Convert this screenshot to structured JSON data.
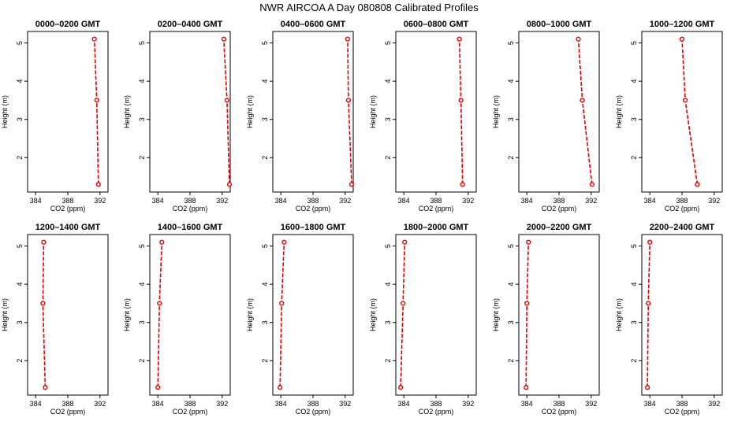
{
  "figure": {
    "title": "NWR AIRCOA A  Day 080808  Calibrated Profiles",
    "colors": {
      "series": "#dd0000",
      "axis": "#000000"
    }
  },
  "chart_data": [
    {
      "type": "line",
      "title": "0000–0200 GMT",
      "xlabel": "CO2 (ppm)",
      "ylabel": "Height (m)",
      "xlim": [
        383,
        393
      ],
      "ylim": [
        1.1,
        5.3
      ],
      "xticks": [
        384,
        388,
        392
      ],
      "yticks": [
        2,
        3,
        4,
        5
      ],
      "grid": false,
      "series": [
        {
          "x": [
            391.8,
            391.6,
            391.3
          ],
          "y": [
            1.3,
            3.5,
            5.1
          ]
        }
      ]
    },
    {
      "type": "line",
      "title": "0200–0400 GMT",
      "xlabel": "CO2 (ppm)",
      "ylabel": "Height (m)",
      "xlim": [
        383,
        393
      ],
      "ylim": [
        1.1,
        5.3
      ],
      "xticks": [
        384,
        388,
        392
      ],
      "yticks": [
        2,
        3,
        4,
        5
      ],
      "grid": false,
      "series": [
        {
          "x": [
            392.9,
            392.6,
            392.2
          ],
          "y": [
            1.3,
            3.5,
            5.1
          ]
        }
      ]
    },
    {
      "type": "line",
      "title": "0400–0600 GMT",
      "xlabel": "CO2 (ppm)",
      "ylabel": "Height (m)",
      "xlim": [
        383,
        393
      ],
      "ylim": [
        1.1,
        5.3
      ],
      "xticks": [
        384,
        388,
        392
      ],
      "yticks": [
        2,
        3,
        4,
        5
      ],
      "grid": false,
      "series": [
        {
          "x": [
            392.8,
            392.4,
            392.3
          ],
          "y": [
            1.3,
            3.5,
            5.1
          ]
        }
      ]
    },
    {
      "type": "line",
      "title": "0600–0800 GMT",
      "xlabel": "CO2 (ppm)",
      "ylabel": "Height (m)",
      "xlim": [
        383,
        393
      ],
      "ylim": [
        1.1,
        5.3
      ],
      "xticks": [
        384,
        388,
        392
      ],
      "yticks": [
        2,
        3,
        4,
        5
      ],
      "grid": false,
      "series": [
        {
          "x": [
            391.3,
            391.1,
            390.9
          ],
          "y": [
            1.3,
            3.5,
            5.1
          ]
        }
      ]
    },
    {
      "type": "line",
      "title": "0800–1000 GMT",
      "xlabel": "CO2 (ppm)",
      "ylabel": "Height (m)",
      "xlim": [
        383,
        393
      ],
      "ylim": [
        1.1,
        5.3
      ],
      "xticks": [
        384,
        388,
        392
      ],
      "yticks": [
        2,
        3,
        4,
        5
      ],
      "grid": false,
      "series": [
        {
          "x": [
            392.1,
            390.9,
            390.4
          ],
          "y": [
            1.3,
            3.5,
            5.1
          ]
        }
      ]
    },
    {
      "type": "line",
      "title": "1000–1200 GMT",
      "xlabel": "CO2 (ppm)",
      "ylabel": "Height (m)",
      "xlim": [
        383,
        393
      ],
      "ylim": [
        1.1,
        5.3
      ],
      "xticks": [
        384,
        388,
        392
      ],
      "yticks": [
        2,
        3,
        4,
        5
      ],
      "grid": false,
      "series": [
        {
          "x": [
            389.9,
            388.4,
            388.0
          ],
          "y": [
            1.3,
            3.5,
            5.1
          ]
        }
      ]
    },
    {
      "type": "line",
      "title": "1200–1400 GMT",
      "xlabel": "CO2 (ppm)",
      "ylabel": "Height (m)",
      "xlim": [
        383,
        393
      ],
      "ylim": [
        1.1,
        5.3
      ],
      "xticks": [
        384,
        388,
        392
      ],
      "yticks": [
        2,
        3,
        4,
        5
      ],
      "grid": false,
      "series": [
        {
          "x": [
            385.2,
            384.9,
            385.0
          ],
          "y": [
            1.3,
            3.5,
            5.1
          ]
        }
      ]
    },
    {
      "type": "line",
      "title": "1400–1600 GMT",
      "xlabel": "CO2 (ppm)",
      "ylabel": "Height (m)",
      "xlim": [
        383,
        393
      ],
      "ylim": [
        1.1,
        5.3
      ],
      "xticks": [
        384,
        388,
        392
      ],
      "yticks": [
        2,
        3,
        4,
        5
      ],
      "grid": false,
      "series": [
        {
          "x": [
            384.0,
            384.2,
            384.5
          ],
          "y": [
            1.3,
            3.5,
            5.1
          ]
        }
      ]
    },
    {
      "type": "line",
      "title": "1600–1800 GMT",
      "xlabel": "CO2 (ppm)",
      "ylabel": "Height (m)",
      "xlim": [
        383,
        393
      ],
      "ylim": [
        1.1,
        5.3
      ],
      "xticks": [
        384,
        388,
        392
      ],
      "yticks": [
        2,
        3,
        4,
        5
      ],
      "grid": false,
      "series": [
        {
          "x": [
            383.9,
            384.1,
            384.4
          ],
          "y": [
            1.3,
            3.5,
            5.1
          ]
        }
      ]
    },
    {
      "type": "line",
      "title": "1800–2000 GMT",
      "xlabel": "CO2 (ppm)",
      "ylabel": "Height (m)",
      "xlim": [
        383,
        393
      ],
      "ylim": [
        1.1,
        5.3
      ],
      "xticks": [
        384,
        388,
        392
      ],
      "yticks": [
        2,
        3,
        4,
        5
      ],
      "grid": false,
      "series": [
        {
          "x": [
            383.6,
            383.9,
            384.1
          ],
          "y": [
            1.3,
            3.5,
            5.1
          ]
        }
      ]
    },
    {
      "type": "line",
      "title": "2000–2200 GMT",
      "xlabel": "CO2 (ppm)",
      "ylabel": "Height (m)",
      "xlim": [
        383,
        393
      ],
      "ylim": [
        1.1,
        5.3
      ],
      "xticks": [
        384,
        388,
        392
      ],
      "yticks": [
        2,
        3,
        4,
        5
      ],
      "grid": false,
      "series": [
        {
          "x": [
            383.9,
            384.0,
            384.2
          ],
          "y": [
            1.3,
            3.5,
            5.1
          ]
        }
      ]
    },
    {
      "type": "line",
      "title": "2200–2400 GMT",
      "xlabel": "CO2 (ppm)",
      "ylabel": "Height (m)",
      "xlim": [
        383,
        393
      ],
      "ylim": [
        1.1,
        5.3
      ],
      "xticks": [
        384,
        388,
        392
      ],
      "yticks": [
        2,
        3,
        4,
        5
      ],
      "grid": false,
      "series": [
        {
          "x": [
            383.7,
            383.8,
            384.0
          ],
          "y": [
            1.3,
            3.5,
            5.1
          ]
        }
      ]
    }
  ]
}
